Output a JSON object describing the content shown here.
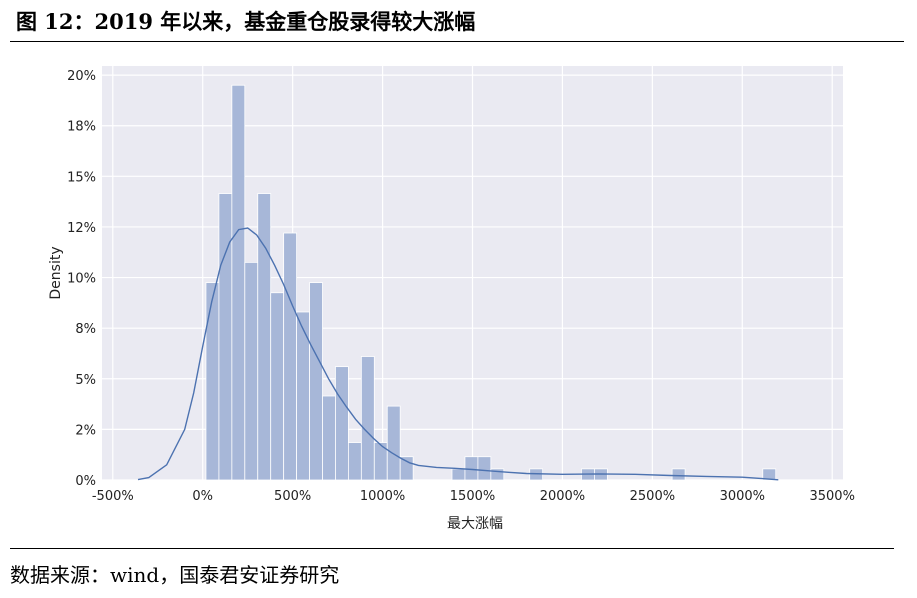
{
  "figure": {
    "title": "图 12：2019 年以来，基金重仓股录得较大涨幅",
    "source": "数据来源：wind，国泰君安证券研究"
  },
  "colors": {
    "plot_bg": "#eaeaf2",
    "grid": "#ffffff",
    "bar_fill": "#a7b7d8",
    "kde_line": "#4c72b0",
    "text": "#222222"
  },
  "chart_data": {
    "type": "bar",
    "xlabel": "最大涨幅",
    "ylabel": "Density",
    "xlim": [
      -560,
      3560
    ],
    "ylim": [
      0,
      0.2045
    ],
    "grid": true,
    "x_ticks": [
      {
        "value": -500,
        "label": "-500%"
      },
      {
        "value": 0,
        "label": "0%"
      },
      {
        "value": 500,
        "label": "500%"
      },
      {
        "value": 1000,
        "label": "1000%"
      },
      {
        "value": 1500,
        "label": "1500%"
      },
      {
        "value": 2000,
        "label": "2000%"
      },
      {
        "value": 2500,
        "label": "2500%"
      },
      {
        "value": 3000,
        "label": "3000%"
      },
      {
        "value": 3500,
        "label": "3500%"
      }
    ],
    "y_ticks": [
      {
        "value": 0,
        "label": "0%"
      },
      {
        "value": 0.025,
        "label": "2%"
      },
      {
        "value": 0.05,
        "label": "5%"
      },
      {
        "value": 0.075,
        "label": "8%"
      },
      {
        "value": 0.1,
        "label": "10%"
      },
      {
        "value": 0.125,
        "label": "12%"
      },
      {
        "value": 0.15,
        "label": "15%"
      },
      {
        "value": 0.175,
        "label": "18%"
      },
      {
        "value": 0.2,
        "label": "20%"
      }
    ],
    "histogram": {
      "bin_width": 72,
      "bins": [
        {
          "x": 18,
          "density": 0.0975
        },
        {
          "x": 90,
          "density": 0.1415
        },
        {
          "x": 162,
          "density": 0.195
        },
        {
          "x": 234,
          "density": 0.1075
        },
        {
          "x": 306,
          "density": 0.1415
        },
        {
          "x": 378,
          "density": 0.0925
        },
        {
          "x": 450,
          "density": 0.122
        },
        {
          "x": 522,
          "density": 0.083
        },
        {
          "x": 594,
          "density": 0.0975
        },
        {
          "x": 666,
          "density": 0.0415
        },
        {
          "x": 738,
          "density": 0.056
        },
        {
          "x": 810,
          "density": 0.0185
        },
        {
          "x": 882,
          "density": 0.061
        },
        {
          "x": 954,
          "density": 0.0185
        },
        {
          "x": 1026,
          "density": 0.0365
        },
        {
          "x": 1098,
          "density": 0.0115
        },
        {
          "x": 1386,
          "density": 0.0055
        },
        {
          "x": 1458,
          "density": 0.0115
        },
        {
          "x": 1530,
          "density": 0.0115
        },
        {
          "x": 1602,
          "density": 0.0055
        },
        {
          "x": 1818,
          "density": 0.0055
        },
        {
          "x": 2106,
          "density": 0.0055
        },
        {
          "x": 2178,
          "density": 0.0055
        },
        {
          "x": 2610,
          "density": 0.0055
        },
        {
          "x": 3114,
          "density": 0.0055
        }
      ]
    },
    "kde": {
      "x": [
        -360,
        -300,
        -200,
        -100,
        -50,
        0,
        50,
        100,
        150,
        200,
        250,
        300,
        350,
        400,
        450,
        500,
        550,
        600,
        650,
        700,
        750,
        800,
        850,
        900,
        950,
        1000,
        1050,
        1100,
        1150,
        1200,
        1300,
        1400,
        1500,
        1600,
        1700,
        1800,
        2000,
        2200,
        2400,
        2600,
        2800,
        3000,
        3100,
        3200
      ],
      "y": [
        0.0002,
        0.0012,
        0.0075,
        0.025,
        0.043,
        0.066,
        0.088,
        0.106,
        0.1175,
        0.1237,
        0.1245,
        0.121,
        0.1145,
        0.106,
        0.0965,
        0.086,
        0.076,
        0.067,
        0.0585,
        0.05,
        0.0425,
        0.036,
        0.03,
        0.025,
        0.0205,
        0.0165,
        0.0135,
        0.0108,
        0.0085,
        0.0072,
        0.0062,
        0.0058,
        0.0052,
        0.0045,
        0.0038,
        0.0032,
        0.0028,
        0.003,
        0.0028,
        0.0022,
        0.0018,
        0.0014,
        0.0008,
        0.0001
      ]
    }
  }
}
